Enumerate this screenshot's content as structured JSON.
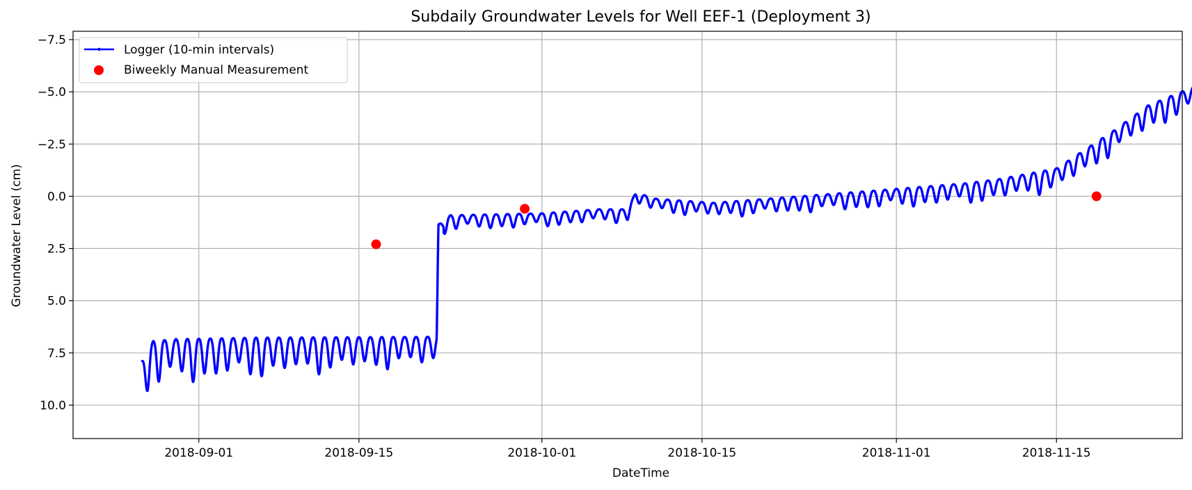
{
  "chart_data": {
    "type": "line",
    "title": "Subdaily Groundwater Levels for Well EEF-1 (Deployment 3)",
    "xlabel": "DateTime",
    "ylabel": "Groundwater Level (cm)",
    "x_range": [
      "2018-08-21",
      "2018-11-26"
    ],
    "ylim": [
      11.6,
      -7.9
    ],
    "y_inverted": true,
    "grid": true,
    "legend_position": "upper-left",
    "x_ticks": [
      "2018-09-01",
      "2018-09-15",
      "2018-10-01",
      "2018-10-15",
      "2018-11-01",
      "2018-11-15"
    ],
    "y_ticks": [
      -7.5,
      -5.0,
      -2.5,
      0.0,
      2.5,
      5.0,
      7.5,
      10.0
    ],
    "y_tick_labels": [
      "−7.5",
      "−5.0",
      "−2.5",
      "0.0",
      "2.5",
      "5.0",
      "7.5",
      "10.0"
    ],
    "series": [
      {
        "name": "Logger (10-min intervals)",
        "kind": "line",
        "color": "#0000ff",
        "interval": "10-min",
        "baseline_keypoints": [
          {
            "day": 0,
            "level": 8.2
          },
          {
            "day": 1,
            "level": 7.2
          },
          {
            "day": 3,
            "level": 7.1
          },
          {
            "day": 10,
            "level": 7.0
          },
          {
            "day": 25,
            "level": 6.9
          },
          {
            "day": 25.8,
            "level": 6.8
          },
          {
            "day": 25.95,
            "level": 1.4
          },
          {
            "day": 27,
            "level": 1.0
          },
          {
            "day": 35,
            "level": 0.9
          },
          {
            "day": 40,
            "level": 0.7
          },
          {
            "day": 42.5,
            "level": 0.7
          },
          {
            "day": 43.2,
            "level": -0.1
          },
          {
            "day": 45,
            "level": 0.2
          },
          {
            "day": 50,
            "level": 0.4
          },
          {
            "day": 55,
            "level": 0.2
          },
          {
            "day": 65,
            "level": -0.2
          },
          {
            "day": 72,
            "level": -0.5
          },
          {
            "day": 75,
            "level": -0.7
          },
          {
            "day": 80,
            "level": -1.2
          },
          {
            "day": 85,
            "level": -3.0
          },
          {
            "day": 88,
            "level": -4.2
          },
          {
            "day": 92,
            "level": -5.1
          },
          {
            "day": 93.3,
            "level": -5.8
          },
          {
            "day": 93.35,
            "level": -0.8
          }
        ],
        "daily_amplitude_keypoints": [
          {
            "day": 0,
            "level": 1.8
          },
          {
            "day": 25.8,
            "level": 1.1
          },
          {
            "day": 26,
            "level": 0.6
          },
          {
            "day": 43,
            "level": 0.5
          },
          {
            "day": 93.35,
            "level": 1.0
          }
        ]
      },
      {
        "name": "Biweekly Manual Measurement",
        "kind": "scatter",
        "color": "#ff0000",
        "points": [
          {
            "date": "2018-09-16",
            "level": 2.3
          },
          {
            "date": "2018-09-29",
            "level": 0.6
          },
          {
            "date": "2018-11-18",
            "level": 0.0
          }
        ]
      }
    ]
  }
}
